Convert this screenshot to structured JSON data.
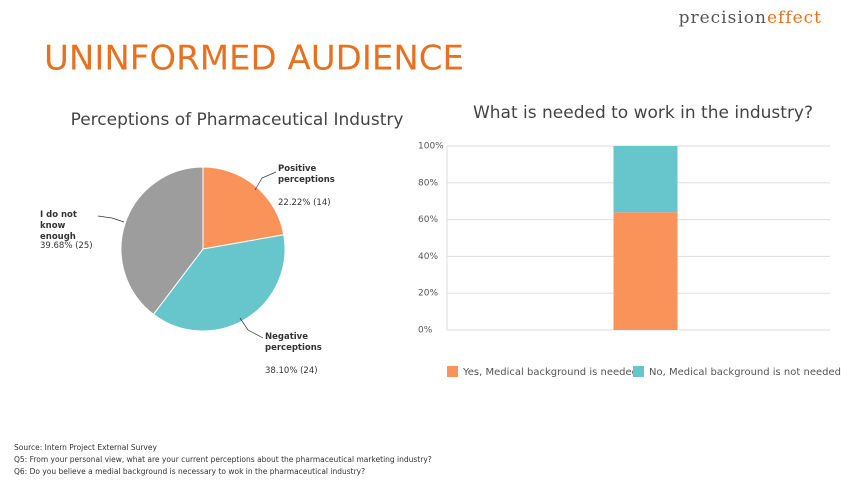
{
  "header": {
    "logo": [
      "precision",
      "effect"
    ],
    "title": "UNINFORMED AUDIENCE"
  },
  "chart_data": [
    {
      "type": "pie",
      "title": "Perceptions of Pharmaceutical Industry",
      "categories": [
        "Positive perceptions",
        "Negative perceptions",
        "I do not know enough"
      ],
      "values": [
        22.22,
        38.1,
        39.68
      ],
      "value_labels": [
        "22.22% (14)",
        "38.10% (24)",
        "39.68% (25)"
      ],
      "colors": [
        "#f9935a",
        "#66c6cb",
        "#9d9d9d"
      ]
    },
    {
      "type": "bar",
      "stacked": true,
      "title": "What is needed to work in the industry?",
      "categories": [
        null
      ],
      "series": [
        {
          "name": "Yes, Medical background is needed",
          "color": "#f9935a",
          "values": [
            64
          ]
        },
        {
          "name": "No, Medical background is not needed",
          "color": "#66c6cb",
          "values": [
            36
          ]
        }
      ],
      "ylim": [
        0,
        100
      ],
      "yticks": [
        {
          "value": 0,
          "label": "0%"
        },
        {
          "value": 20,
          "label": "20%"
        },
        {
          "value": 40,
          "label": "40%"
        },
        {
          "value": 60,
          "label": "60%"
        },
        {
          "value": 80,
          "label": "80%"
        },
        {
          "value": 100,
          "label": "100%"
        }
      ],
      "grid": true,
      "legend": "bottom"
    }
  ],
  "footer": [
    "Source: Intern Project External Survey",
    "Q5: From your personal view, what are your current perceptions about the pharmaceutical marketing industry?",
    "Q6: Do you believe a medial background is necessary to wok in the pharmaceutical industry?"
  ]
}
